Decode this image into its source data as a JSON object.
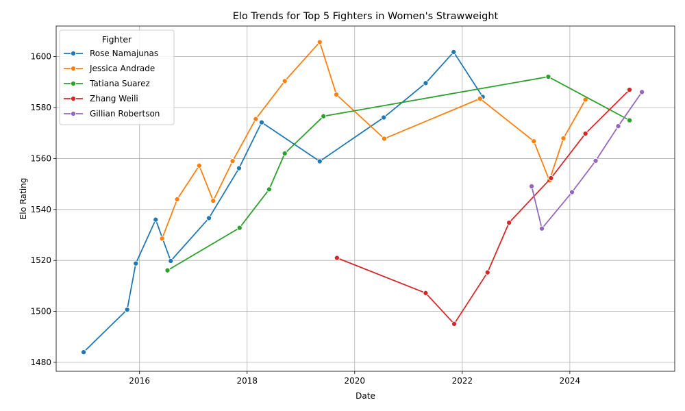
{
  "chart_data": {
    "type": "line",
    "title": "Elo Trends for Top 5 Fighters in Women's Strawweight",
    "xlabel": "Date",
    "ylabel": "Elo Rating",
    "x_type": "year",
    "xlim": [
      2014.45,
      2025.95
    ],
    "ylim": [
      1476.5,
      1612
    ],
    "xticks": [
      2016,
      2018,
      2020,
      2022,
      2024
    ],
    "xtick_labels": [
      "2016",
      "2018",
      "2020",
      "2022",
      "2024"
    ],
    "yticks": [
      1480,
      1500,
      1520,
      1540,
      1560,
      1580,
      1600
    ],
    "ytick_labels": [
      "1480",
      "1500",
      "1520",
      "1540",
      "1560",
      "1580",
      "1600"
    ],
    "grid": true,
    "legend": {
      "title": "Fighter",
      "placement": "top-left"
    },
    "series": [
      {
        "name": "Rose Namajunas",
        "color": "#1f77b4",
        "x": [
          2014.96,
          2015.77,
          2015.93,
          2016.3,
          2016.58,
          2017.29,
          2017.85,
          2018.27,
          2019.35,
          2020.54,
          2021.32,
          2021.84,
          2022.38
        ],
        "y": [
          1484.0,
          1500.7,
          1518.8,
          1536.0,
          1519.8,
          1536.6,
          1556.2,
          1574.2,
          1558.9,
          1576.1,
          1589.6,
          1601.8,
          1584.2
        ]
      },
      {
        "name": "Jessica Andrade",
        "color": "#ff7f0e",
        "x": [
          2016.42,
          2016.7,
          2017.11,
          2017.37,
          2017.73,
          2018.16,
          2018.7,
          2019.35,
          2019.66,
          2020.55,
          2022.33,
          2023.33,
          2023.62,
          2023.88,
          2024.29
        ],
        "y": [
          1528.6,
          1544.0,
          1557.2,
          1543.4,
          1559.0,
          1575.5,
          1590.4,
          1605.7,
          1585.1,
          1567.8,
          1583.5,
          1566.8,
          1551.4,
          1567.9,
          1583.1
        ]
      },
      {
        "name": "Tatiana Suarez",
        "color": "#2ca02c",
        "x": [
          2016.52,
          2017.86,
          2018.41,
          2018.7,
          2019.42,
          2023.6,
          2025.11
        ],
        "y": [
          1516.1,
          1532.8,
          1547.9,
          1562.0,
          1576.6,
          1592.1,
          1575.0
        ]
      },
      {
        "name": "Zhang Weili",
        "color": "#d62728",
        "x": [
          2019.67,
          2021.32,
          2021.85,
          2022.47,
          2022.87,
          2023.65,
          2024.29,
          2025.11
        ],
        "y": [
          1521.0,
          1507.2,
          1495.1,
          1515.3,
          1534.8,
          1552.3,
          1569.8,
          1587.0
        ]
      },
      {
        "name": "Gillian Robertson",
        "color": "#9467bd",
        "x": [
          2023.29,
          2023.48,
          2024.04,
          2024.48,
          2024.9,
          2025.34
        ],
        "y": [
          1549.1,
          1532.5,
          1546.8,
          1559.1,
          1572.7,
          1586.1
        ]
      }
    ]
  }
}
